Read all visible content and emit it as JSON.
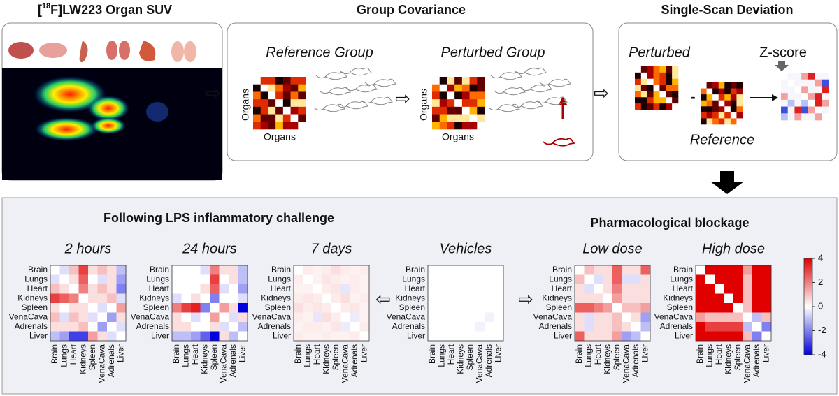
{
  "top": {
    "panel1": {
      "title_pre": "[",
      "title_sup": "18",
      "title_post": "F]LW223 Organ SUV"
    },
    "panel2": {
      "title": "Group Covariance",
      "reference": "Reference Group",
      "perturbed": "Perturbed Group",
      "axis": "Organs"
    },
    "panel3": {
      "title": "Single-Scan Deviation",
      "perturbed": "Perturbed",
      "minus": "-",
      "zscore": "Z-score",
      "reference": "Reference"
    }
  },
  "bottom": {
    "lps_title": "Following LPS inflammatory challenge",
    "pharma_title": "Pharmacological blockage",
    "organs": [
      "Brain",
      "Lungs",
      "Heart",
      "Kidneys",
      "Spleen",
      "VenaCava",
      "Adrenals",
      "Liver"
    ],
    "matrices": [
      {
        "title": "2 hours",
        "values": [
          [
            0,
            -0.5,
            1,
            3,
            0.5,
            1,
            0.5,
            -1
          ],
          [
            -0.5,
            0,
            0.5,
            2.5,
            0,
            -0.5,
            0.5,
            -1.5
          ],
          [
            1,
            0.5,
            0,
            2,
            0.5,
            1,
            0.5,
            -2
          ],
          [
            3,
            2.5,
            2,
            0,
            0.5,
            0.5,
            1,
            -0.5
          ],
          [
            0.5,
            0,
            0.5,
            0.5,
            0,
            -0.5,
            0,
            1.5
          ],
          [
            1,
            -0.5,
            1,
            0.5,
            -0.5,
            0,
            -1.5,
            0.5
          ],
          [
            0.5,
            0.5,
            0.5,
            1,
            0,
            -1.5,
            0,
            -0.5
          ],
          [
            -1,
            -1.5,
            -3,
            -3,
            1.5,
            0.5,
            -0.5,
            0
          ]
        ]
      },
      {
        "title": "24 hours",
        "values": [
          [
            0,
            0,
            0,
            -0.5,
            2,
            0.5,
            0.5,
            -1
          ],
          [
            0,
            0,
            0,
            0,
            3,
            0,
            0.5,
            -1
          ],
          [
            0,
            0,
            0,
            0.5,
            2.5,
            -0.5,
            0,
            -1.5
          ],
          [
            -0.5,
            0,
            0.5,
            0,
            -2,
            0,
            0,
            -0.5
          ],
          [
            2,
            3,
            3.5,
            -2,
            0,
            1.5,
            0.5,
            -4
          ],
          [
            0.5,
            0,
            -0.5,
            0,
            1.5,
            0,
            -0.5,
            0.5
          ],
          [
            0.5,
            0.5,
            0,
            0,
            0.5,
            -0.5,
            0,
            -1
          ],
          [
            -1,
            -1,
            -1.5,
            -2.5,
            -4,
            0.5,
            -1,
            0
          ]
        ]
      },
      {
        "title": "7 days",
        "values": [
          [
            0,
            0.3,
            0.2,
            0.3,
            0.5,
            0.3,
            0.2,
            0.3
          ],
          [
            0.3,
            0,
            0.2,
            0.4,
            0.3,
            0.2,
            0.3,
            0.2
          ],
          [
            0.2,
            0.2,
            0,
            0.3,
            0.4,
            -0.4,
            0.3,
            0.2
          ],
          [
            0.3,
            0.4,
            0.3,
            0,
            0.3,
            0.5,
            0.2,
            0.3
          ],
          [
            0.5,
            0.3,
            0.4,
            0.3,
            0,
            0.3,
            0.4,
            0.2
          ],
          [
            0.3,
            0.2,
            -0.4,
            0.5,
            0.3,
            0,
            -0.3,
            0.2
          ],
          [
            0.2,
            0.3,
            0.3,
            0.2,
            0.4,
            -0.3,
            0,
            0.3
          ],
          [
            0.3,
            0.2,
            0.2,
            0.3,
            0.2,
            0.2,
            0.3,
            0
          ]
        ]
      },
      {
        "title": "Vehicles",
        "values": [
          [
            0,
            0,
            0,
            0,
            0,
            0,
            0,
            0
          ],
          [
            0,
            0,
            0,
            0,
            0,
            0,
            0,
            0
          ],
          [
            0,
            0,
            0,
            0,
            0,
            0,
            0,
            0
          ],
          [
            0,
            0,
            0,
            0,
            0,
            0,
            0,
            0
          ],
          [
            0,
            0,
            0,
            0,
            0,
            0,
            0,
            0
          ],
          [
            0,
            0,
            0,
            0,
            0,
            0,
            -0.2,
            0
          ],
          [
            0,
            0,
            0,
            0,
            0,
            -0.2,
            0,
            0
          ],
          [
            0,
            0,
            0,
            0,
            0,
            0,
            0,
            0
          ]
        ]
      },
      {
        "title": "Low dose",
        "values": [
          [
            0,
            1,
            0.5,
            0.5,
            2.5,
            0.5,
            0.5,
            2.5
          ],
          [
            1,
            0,
            -0.5,
            0.5,
            2.5,
            -0.5,
            -0.5,
            0.5
          ],
          [
            0.5,
            -0.5,
            0,
            0.5,
            2,
            0.5,
            0.5,
            0.5
          ],
          [
            0.5,
            0.5,
            0.5,
            0,
            1.5,
            0.5,
            0.5,
            0.5
          ],
          [
            2.5,
            2.5,
            2,
            1.5,
            0,
            1,
            1,
            1.5
          ],
          [
            0.5,
            -0.5,
            0.5,
            0.5,
            1,
            0,
            0.5,
            -1.5
          ],
          [
            0.5,
            -0.5,
            0.5,
            0.5,
            1,
            0.5,
            0,
            -1
          ],
          [
            2.5,
            0.5,
            0.5,
            0.5,
            1.5,
            -1.5,
            -1,
            0
          ]
        ]
      },
      {
        "title": "High dose",
        "values": [
          [
            0,
            4,
            4,
            4,
            4,
            1.5,
            4,
            4
          ],
          [
            4,
            0,
            4,
            4,
            4,
            1,
            4,
            4
          ],
          [
            4,
            4,
            0,
            4,
            4,
            1,
            4,
            4
          ],
          [
            4,
            4,
            4,
            0,
            4,
            1,
            4,
            4
          ],
          [
            4,
            4,
            4,
            4,
            0,
            1,
            4,
            4
          ],
          [
            1.5,
            1,
            1,
            1,
            1,
            0,
            -1,
            1
          ],
          [
            4,
            3,
            3,
            3,
            3,
            -1,
            0,
            -2
          ],
          [
            4,
            4,
            4,
            4,
            4,
            1,
            -2,
            0
          ]
        ]
      }
    ],
    "colorbar": {
      "lim": [
        -4,
        4
      ],
      "ticks": [
        4,
        2,
        0,
        -2,
        -4
      ]
    }
  }
}
